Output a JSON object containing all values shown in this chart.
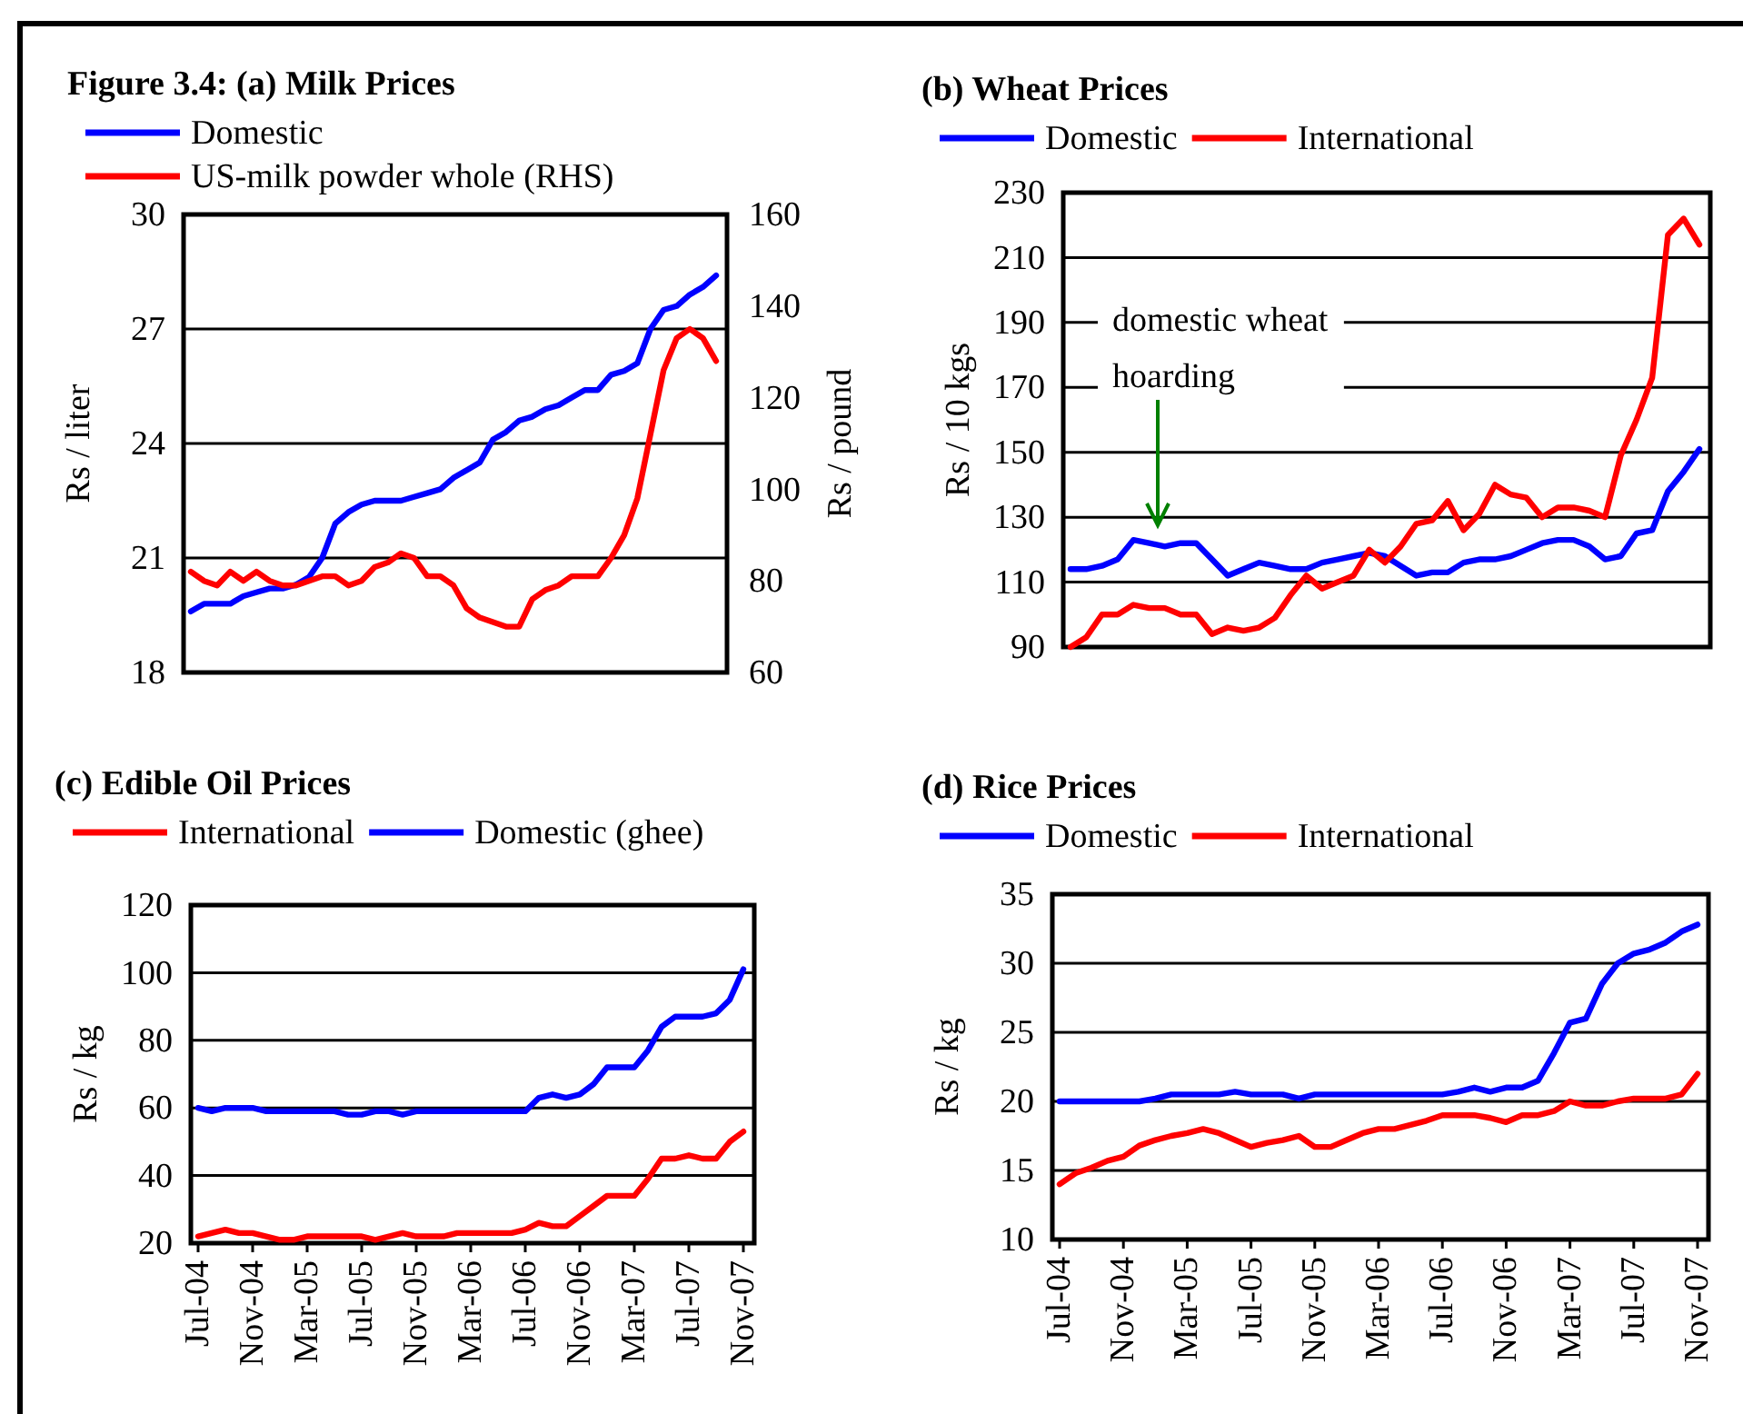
{
  "chart_data": [
    {
      "type": "line",
      "title": "Figure 3.4: (a) Milk  Prices",
      "ylabel": "Rs / liter",
      "y2label": "Rs / pound",
      "categories": [
        null,
        null,
        null,
        null,
        null,
        null,
        null,
        null,
        null,
        null,
        null,
        null,
        null,
        null,
        null,
        null,
        null,
        null,
        null,
        null,
        null,
        null,
        null,
        null,
        null,
        null,
        null,
        null,
        null,
        null,
        null,
        null,
        null,
        null,
        null,
        null,
        null,
        null,
        null,
        null,
        null
      ],
      "series": [
        {
          "name": "Domestic",
          "color": "#0000ff",
          "values": [
            19.6,
            19.8,
            19.8,
            19.8,
            20,
            20.1,
            20.2,
            20.2,
            20.3,
            20.5,
            21,
            21.9,
            22.2,
            22.4,
            22.5,
            22.5,
            22.5,
            22.6,
            22.7,
            22.8,
            23.1,
            23.3,
            23.5,
            24.1,
            24.3,
            24.6,
            24.7,
            24.9,
            25,
            25.2,
            25.4,
            25.4,
            25.8,
            25.9,
            26.1,
            27,
            27.5,
            27.6,
            27.9,
            28.1,
            28.4
          ]
        },
        {
          "name": "US-milk powder whole (RHS)",
          "color": "#ff0000",
          "axis": "y2",
          "values": [
            82,
            80,
            79,
            82,
            80,
            82,
            80,
            79,
            79,
            80,
            81,
            81,
            79,
            80,
            83,
            84,
            86,
            85,
            81,
            81,
            79,
            74,
            72,
            71,
            70,
            70,
            76,
            78,
            79,
            81,
            81,
            81,
            85,
            90,
            98,
            112,
            126,
            133,
            135,
            133,
            128
          ]
        }
      ],
      "ylim": [
        18,
        30
      ],
      "yticks": [
        18,
        21,
        24,
        27,
        30
      ],
      "y2lim": [
        60,
        160
      ],
      "y2ticks": [
        60,
        80,
        100,
        120,
        140,
        160
      ],
      "grid": "y",
      "legend": "top"
    },
    {
      "type": "line",
      "title": "(b) Wheat Prices",
      "ylabel": "Rs / 10 kgs",
      "categories": [
        null,
        null,
        null,
        null,
        null,
        null,
        null,
        null,
        null,
        null,
        null,
        null,
        null,
        null,
        null,
        null,
        null,
        null,
        null,
        null,
        null,
        null,
        null,
        null,
        null,
        null,
        null,
        null,
        null,
        null,
        null,
        null,
        null,
        null,
        null,
        null,
        null,
        null,
        null,
        null,
        null
      ],
      "series": [
        {
          "name": "Domestic",
          "color": "#0000ff",
          "values": [
            114,
            114,
            115,
            117,
            123,
            122,
            121,
            122,
            122,
            117,
            112,
            114,
            116,
            115,
            114,
            114,
            116,
            117,
            118,
            119,
            118,
            115,
            112,
            113,
            113,
            116,
            117,
            117,
            118,
            120,
            122,
            123,
            123,
            121,
            117,
            118,
            125,
            126,
            138,
            144,
            151
          ]
        },
        {
          "name": "International",
          "color": "#ff0000",
          "values": [
            90,
            93,
            100,
            100,
            103,
            102,
            102,
            100,
            100,
            94,
            96,
            95,
            96,
            99,
            106,
            112,
            108,
            110,
            112,
            120,
            116,
            121,
            128,
            129,
            135,
            126,
            131,
            140,
            137,
            136,
            130,
            133,
            133,
            132,
            130,
            149,
            160,
            173,
            217,
            222,
            214
          ]
        }
      ],
      "ylim": [
        90,
        230
      ],
      "yticks": [
        90,
        110,
        130,
        150,
        170,
        190,
        210,
        230
      ],
      "grid": "y",
      "legend": "top",
      "annotations": [
        "domestic wheat hoarding"
      ]
    },
    {
      "type": "line",
      "title": "(c) Edible Oil Prices",
      "ylabel": "Rs / kg",
      "categories": [
        "Jul-04",
        null,
        null,
        null,
        "Nov-04",
        null,
        null,
        null,
        "Mar-05",
        null,
        null,
        null,
        "Jul-05",
        null,
        null,
        null,
        "Nov-05",
        null,
        null,
        null,
        "Mar-06",
        null,
        null,
        null,
        "Jul-06",
        null,
        null,
        null,
        "Nov-06",
        null,
        null,
        null,
        "Mar-07",
        null,
        null,
        null,
        "Jul-07",
        null,
        null,
        null,
        "Nov-07"
      ],
      "series": [
        {
          "name": "International",
          "color": "#ff0000",
          "values": [
            22,
            23,
            24,
            23,
            23,
            22,
            21,
            21,
            22,
            22,
            22,
            22,
            22,
            21,
            22,
            23,
            22,
            22,
            22,
            23,
            23,
            23,
            23,
            23,
            24,
            26,
            25,
            25,
            28,
            31,
            34,
            34,
            34,
            39,
            45,
            45,
            46,
            45,
            45,
            50,
            53
          ]
        },
        {
          "name": "Domestic (ghee)",
          "color": "#0000ff",
          "values": [
            60,
            59,
            60,
            60,
            60,
            59,
            59,
            59,
            59,
            59,
            59,
            58,
            58,
            59,
            59,
            58,
            59,
            59,
            59,
            59,
            59,
            59,
            59,
            59,
            59,
            63,
            64,
            63,
            64,
            67,
            72,
            72,
            72,
            77,
            84,
            87,
            87,
            87,
            88,
            92,
            101
          ]
        }
      ],
      "ylim": [
        20,
        120
      ],
      "yticks": [
        20,
        40,
        60,
        80,
        100,
        120
      ],
      "grid": "y",
      "legend": "top"
    },
    {
      "type": "line",
      "title": "(d) Rice Prices",
      "ylabel": "Rs / kg",
      "categories": [
        "Jul-04",
        null,
        null,
        null,
        "Nov-04",
        null,
        null,
        null,
        "Mar-05",
        null,
        null,
        null,
        "Jul-05",
        null,
        null,
        null,
        "Nov-05",
        null,
        null,
        null,
        "Mar-06",
        null,
        null,
        null,
        "Jul-06",
        null,
        null,
        null,
        "Nov-06",
        null,
        null,
        null,
        "Mar-07",
        null,
        null,
        null,
        "Jul-07",
        null,
        null,
        null,
        "Nov-07"
      ],
      "series": [
        {
          "name": "Domestic",
          "color": "#0000ff",
          "values": [
            20,
            20,
            20,
            20,
            20,
            20,
            20.2,
            20.5,
            20.5,
            20.5,
            20.5,
            20.7,
            20.5,
            20.5,
            20.5,
            20.2,
            20.5,
            20.5,
            20.5,
            20.5,
            20.5,
            20.5,
            20.5,
            20.5,
            20.5,
            20.7,
            21,
            20.7,
            21,
            21,
            21.5,
            23.5,
            25.7,
            26,
            28.5,
            30,
            30.7,
            31,
            31.5,
            32.3,
            32.8
          ]
        },
        {
          "name": "International",
          "color": "#ff0000",
          "values": [
            14,
            14.8,
            15.2,
            15.7,
            16,
            16.8,
            17.2,
            17.5,
            17.7,
            18,
            17.7,
            17.2,
            16.7,
            17,
            17.2,
            17.5,
            16.7,
            16.7,
            17.2,
            17.7,
            18,
            18,
            18.3,
            18.6,
            19,
            19,
            19,
            18.8,
            18.5,
            19,
            19,
            19.3,
            20,
            19.7,
            19.7,
            20,
            20.2,
            20.2,
            20.2,
            20.5,
            22
          ]
        }
      ],
      "ylim": [
        10,
        35
      ],
      "yticks": [
        10,
        15,
        20,
        25,
        30,
        35
      ],
      "grid": "y",
      "legend": "top"
    }
  ]
}
